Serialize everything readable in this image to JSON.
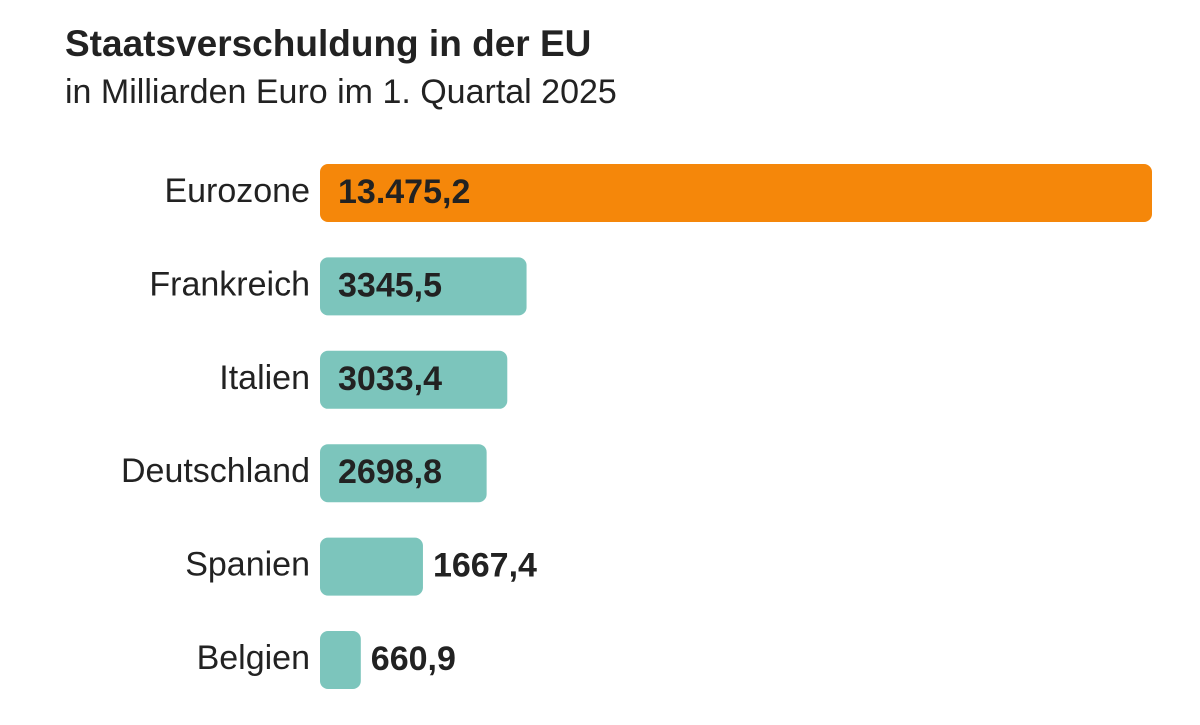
{
  "chart_data": {
    "type": "hbar",
    "title": "Staatsverschuldung in der EU",
    "subtitle": "in Milliarden Euro im 1. Quartal 2025",
    "categories": [
      "Eurozone",
      "Frankreich",
      "Italien",
      "Deutschland",
      "Spanien",
      "Belgien"
    ],
    "values": [
      13475.2,
      3345.5,
      3033.4,
      2698.8,
      1667.4,
      660.9
    ],
    "value_labels": [
      "13.475,2",
      "3345,5",
      "3033,4",
      "2698,8",
      "1667,4",
      "660,9"
    ],
    "colors": [
      "#f5870a",
      "#7cc5bc",
      "#7cc5bc",
      "#7cc5bc",
      "#7cc5bc",
      "#7cc5bc"
    ]
  }
}
